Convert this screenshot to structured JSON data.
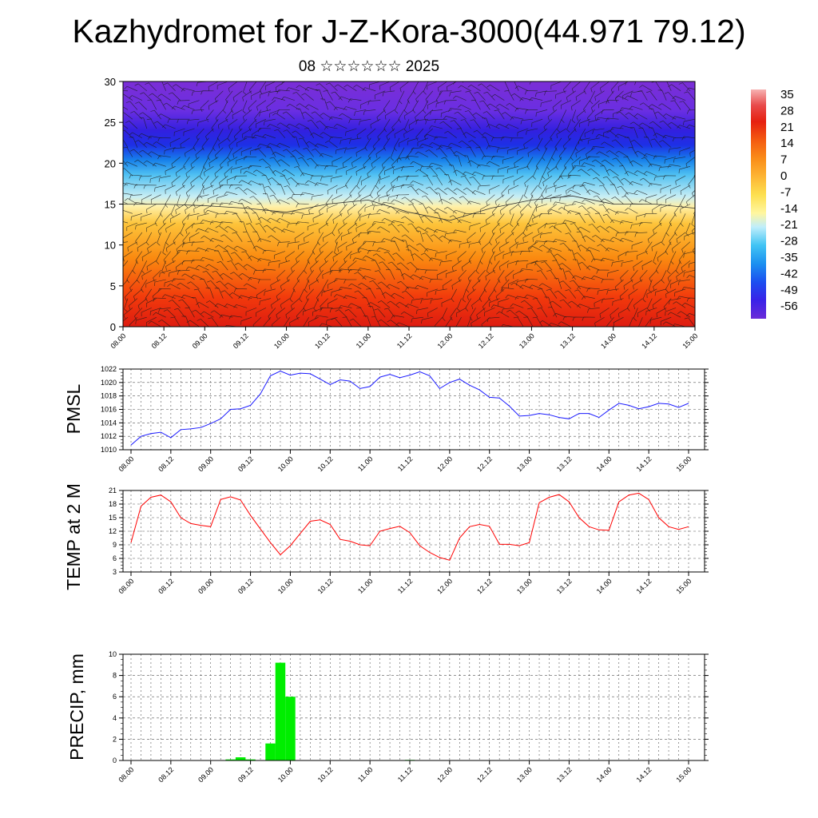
{
  "title": "Kazhydromet for J-Z-Kora-3000(44.971 79.12)",
  "subtitle": "08 ☆☆☆☆☆☆ 2025",
  "time_labels": [
    "08.00",
    "08.12",
    "09.00",
    "09.12",
    "10.00",
    "10.12",
    "11.00",
    "11.12",
    "12.00",
    "12.12",
    "13.00",
    "13.12",
    "14.00",
    "14.12",
    "15.00"
  ],
  "colors": {
    "pmsl": "#1a1aff",
    "temp": "#ff0000",
    "precip": "#00ee00"
  },
  "chart_data": [
    {
      "type": "heatmap",
      "name": "cross-section",
      "ylim": [
        0,
        30
      ],
      "yticks": [
        "0",
        "5",
        "10",
        "15",
        "20",
        "25",
        "30"
      ],
      "xlabels": [
        "08.00",
        "08.12",
        "09.00",
        "09.12",
        "10.00",
        "10.12",
        "11.00",
        "11.12",
        "12.00",
        "12.12",
        "13.00",
        "13.12",
        "14.00",
        "14.12",
        "15.00"
      ],
      "colorbar_labels": [
        "35",
        "28",
        "21",
        "14",
        "7",
        "0",
        "-7",
        "-14",
        "-21",
        "-28",
        "-35",
        "-42",
        "-49",
        "-56"
      ],
      "colorbar_range": [
        -60,
        38
      ],
      "freezing_level_km": [
        15,
        15,
        14.8,
        14.5,
        14,
        15,
        15.5,
        14,
        13,
        14.5,
        15.5,
        16,
        15,
        15,
        14.5
      ]
    },
    {
      "type": "line",
      "ylabel": "PMSL",
      "ylim": [
        1010,
        1022
      ],
      "yticks": [
        "1010",
        "1012",
        "1014",
        "1016",
        "1018",
        "1020",
        "1022"
      ],
      "xlabels": [
        "08.00",
        "08.12",
        "09.00",
        "09.12",
        "10.00",
        "10.12",
        "11.00",
        "11.12",
        "12.00",
        "12.12",
        "13.00",
        "13.12",
        "14.00",
        "14.12",
        "15.00"
      ],
      "values": [
        1010.7,
        1012.0,
        1012.4,
        1012.6,
        1011.8,
        1013.0,
        1013.1,
        1013.3,
        1013.9,
        1014.6,
        1016.0,
        1016.1,
        1016.6,
        1018.3,
        1021.0,
        1021.7,
        1021.1,
        1021.4,
        1021.3,
        1020.5,
        1019.7,
        1020.4,
        1020.2,
        1019.1,
        1019.4,
        1020.8,
        1021.2,
        1020.7,
        1021.1,
        1021.6,
        1021.0,
        1019.1,
        1020.0,
        1020.5,
        1019.6,
        1018.9,
        1017.8,
        1017.7,
        1016.5,
        1015.0,
        1015.1,
        1015.4,
        1015.2,
        1014.8,
        1014.6,
        1015.4,
        1015.4,
        1014.8,
        1015.9,
        1016.9,
        1016.6,
        1016.1,
        1016.4,
        1016.9,
        1016.8,
        1016.3,
        1016.9
      ]
    },
    {
      "type": "line",
      "ylabel": "TEMP at 2 M",
      "ylim": [
        3,
        21
      ],
      "yticks": [
        "3",
        "6",
        "9",
        "12",
        "15",
        "18",
        "21"
      ],
      "xlabels": [
        "08.00",
        "08.12",
        "09.00",
        "09.12",
        "10.00",
        "10.12",
        "11.00",
        "11.12",
        "12.00",
        "12.12",
        "13.00",
        "13.12",
        "14.00",
        "14.12",
        "15.00"
      ],
      "values": [
        9.5,
        17.5,
        19.5,
        20.0,
        18.5,
        15.0,
        13.7,
        13.3,
        13.0,
        19.0,
        19.6,
        18.9,
        15.5,
        12.5,
        9.5,
        6.8,
        8.8,
        11.5,
        14.2,
        14.5,
        13.5,
        10.2,
        9.8,
        9.0,
        8.8,
        12.0,
        12.6,
        13.1,
        11.7,
        8.8,
        7.3,
        6.2,
        5.6,
        10.5,
        13.0,
        13.5,
        13.1,
        9.1,
        9.1,
        8.8,
        9.5,
        18.3,
        19.5,
        20.1,
        18.5,
        15.0,
        13.0,
        12.3,
        12.2,
        18.5,
        20.0,
        20.4,
        19.0,
        15.0,
        13.0,
        12.4,
        13.0
      ]
    },
    {
      "type": "bar",
      "ylabel": "PRECIP, mm",
      "ylim": [
        0,
        10
      ],
      "yticks": [
        "0",
        "2",
        "4",
        "6",
        "8",
        "10"
      ],
      "xlabels": [
        "08.00",
        "08.12",
        "09.00",
        "09.12",
        "10.00",
        "10.12",
        "11.00",
        "11.12",
        "12.00",
        "12.12",
        "13.00",
        "13.12",
        "14.00",
        "14.12",
        "15.00"
      ],
      "values": [
        0,
        0,
        0,
        0,
        0,
        0,
        0,
        0,
        0,
        0,
        0.1,
        0.3,
        0.1,
        0,
        1.6,
        9.2,
        6.0,
        0,
        0,
        0,
        0,
        0,
        0,
        0,
        0,
        0,
        0,
        0,
        0.05,
        0,
        0,
        0,
        0,
        0,
        0,
        0,
        0,
        0,
        0,
        0,
        0,
        0,
        0,
        0,
        0,
        0,
        0,
        0,
        0,
        0,
        0,
        0,
        0,
        0,
        0,
        0,
        0
      ]
    }
  ]
}
